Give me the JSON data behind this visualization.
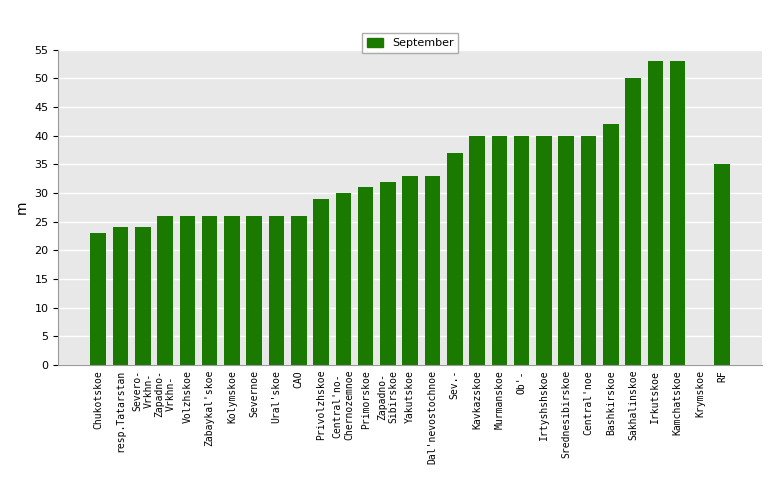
{
  "categories": [
    "Chukotskoe",
    "resp.Tatarstan",
    "Severo-\nVrkhn-",
    "Zapadno-\nVrkhn-",
    "Volzhskoe",
    "Zabaykal'skoe",
    "Kolymskoe",
    "Severnoe",
    "Ural'skoe",
    "CAO",
    "Privolzhskoe",
    "Central'no-\nChernozemnoe",
    "Primorskoe",
    "Zapadno-\nSibirskoe",
    "Yakutskoe",
    "Dal'nevostochnoe",
    "Sev.-",
    "Kavkazskoe",
    "Murmanskoe",
    "Ob'-",
    "Irtyshshskoe",
    "Srednesibirskoe",
    "Central'noe",
    "Bashkirskoe",
    "Sakhalinskoe",
    "Irkutskoe",
    "Kamchatskoe",
    "Krymskoe",
    "RF"
  ],
  "values": [
    23,
    24,
    24,
    26,
    26,
    26,
    26,
    26,
    26,
    26,
    29,
    30,
    31,
    32,
    33,
    33,
    37,
    40,
    40,
    40,
    40,
    40,
    40,
    42,
    50,
    53,
    53,
    0,
    35
  ],
  "bar_color": "#1a7a00",
  "ylabel": "m",
  "ylim": [
    0,
    55
  ],
  "yticks": [
    0,
    5,
    10,
    15,
    20,
    25,
    30,
    35,
    40,
    45,
    50,
    55
  ],
  "legend_label": "September",
  "legend_color": "#1a7a00",
  "bg_color": "#e8e8e8",
  "grid_color": "#ffffff",
  "title_fontsize": 9,
  "tick_fontsize": 7
}
